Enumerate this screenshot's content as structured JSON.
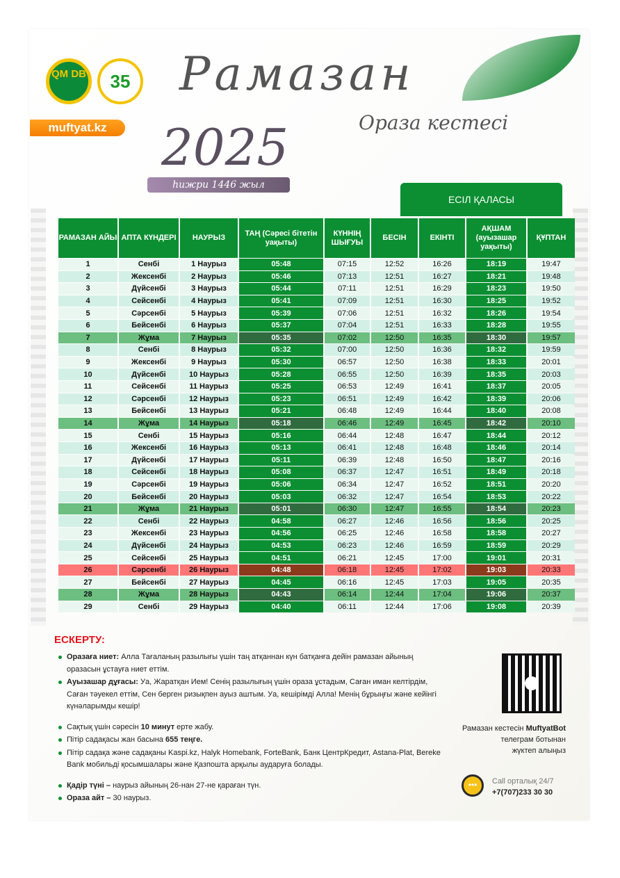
{
  "header": {
    "logo1_text": "QM DB",
    "logo2_text": "35",
    "site": "muftyat.kz",
    "title": "Рамазан",
    "subtitle": "Ораза кестесі",
    "year": "2025",
    "hijri": "һижри 1446 жыл",
    "city": "ЕСІЛ ҚАЛАСЫ"
  },
  "colors": {
    "green": "#0b8f32",
    "friday": "#6cbf80",
    "friday_dark": "#2f6b3e",
    "special": "#ff7676",
    "special_dark": "#8c3a1c",
    "warning": "#e3151b",
    "orange": "#f57f00"
  },
  "table": {
    "headers": [
      "РАМАЗАН АЙЫ",
      "АПТА КҮНДЕРІ",
      "НАУРЫЗ",
      "ТАҢ (Сәресі бітетін уақыты)",
      "КҮННІҢ ШЫҒУЫ",
      "БЕСІН",
      "ЕКІНТІ",
      "АҚШАМ (ауызашар уақыты)",
      "ҚҰПТАН"
    ],
    "rows": [
      [
        "1",
        "Сенбі",
        "1 Наурыз",
        "05:48",
        "07:15",
        "12:52",
        "16:26",
        "18:19",
        "19:47"
      ],
      [
        "2",
        "Жексенбі",
        "2 Наурыз",
        "05:46",
        "07:13",
        "12:51",
        "16:27",
        "18:21",
        "19:48"
      ],
      [
        "3",
        "Дүйсенбі",
        "3 Наурыз",
        "05:44",
        "07:11",
        "12:51",
        "16:29",
        "18:23",
        "19:50"
      ],
      [
        "4",
        "Сейсенбі",
        "4 Наурыз",
        "05:41",
        "07:09",
        "12:51",
        "16:30",
        "18:25",
        "19:52"
      ],
      [
        "5",
        "Сәрсенбі",
        "5 Наурыз",
        "05:39",
        "07:06",
        "12:51",
        "16:32",
        "18:26",
        "19:54"
      ],
      [
        "6",
        "Бейсенбі",
        "6 Наурыз",
        "05:37",
        "07:04",
        "12:51",
        "16:33",
        "18:28",
        "19:55"
      ],
      [
        "7",
        "Жұма",
        "7 Наурыз",
        "05:35",
        "07:02",
        "12:50",
        "16:35",
        "18:30",
        "19:57"
      ],
      [
        "8",
        "Сенбі",
        "8 Наурыз",
        "05:32",
        "07:00",
        "12:50",
        "16:36",
        "18:32",
        "19:59"
      ],
      [
        "9",
        "Жексенбі",
        "9 Наурыз",
        "05:30",
        "06:57",
        "12:50",
        "16:38",
        "18:33",
        "20:01"
      ],
      [
        "10",
        "Дүйсенбі",
        "10 Наурыз",
        "05:28",
        "06:55",
        "12:50",
        "16:39",
        "18:35",
        "20:03"
      ],
      [
        "11",
        "Сейсенбі",
        "11 Наурыз",
        "05:25",
        "06:53",
        "12:49",
        "16:41",
        "18:37",
        "20:05"
      ],
      [
        "12",
        "Сәрсенбі",
        "12 Наурыз",
        "05:23",
        "06:51",
        "12:49",
        "16:42",
        "18:39",
        "20:06"
      ],
      [
        "13",
        "Бейсенбі",
        "13 Наурыз",
        "05:21",
        "06:48",
        "12:49",
        "16:44",
        "18:40",
        "20:08"
      ],
      [
        "14",
        "Жұма",
        "14 Наурыз",
        "05:18",
        "06:46",
        "12:49",
        "16:45",
        "18:42",
        "20:10"
      ],
      [
        "15",
        "Сенбі",
        "15 Наурыз",
        "05:16",
        "06:44",
        "12:48",
        "16:47",
        "18:44",
        "20:12"
      ],
      [
        "16",
        "Жексенбі",
        "16 Наурыз",
        "05:13",
        "06:41",
        "12:48",
        "16:48",
        "18:46",
        "20:14"
      ],
      [
        "17",
        "Дүйсенбі",
        "17 Наурыз",
        "05:11",
        "06:39",
        "12:48",
        "16:50",
        "18:47",
        "20:16"
      ],
      [
        "18",
        "Сейсенбі",
        "18 Наурыз",
        "05:08",
        "06:37",
        "12:47",
        "16:51",
        "18:49",
        "20:18"
      ],
      [
        "19",
        "Сәрсенбі",
        "19 Наурыз",
        "05:06",
        "06:34",
        "12:47",
        "16:52",
        "18:51",
        "20:20"
      ],
      [
        "20",
        "Бейсенбі",
        "20 Наурыз",
        "05:03",
        "06:32",
        "12:47",
        "16:54",
        "18:53",
        "20:22"
      ],
      [
        "21",
        "Жұма",
        "21 Наурыз",
        "05:01",
        "06:30",
        "12:47",
        "16:55",
        "18:54",
        "20:23"
      ],
      [
        "22",
        "Сенбі",
        "22 Наурыз",
        "04:58",
        "06:27",
        "12:46",
        "16:56",
        "18:56",
        "20:25"
      ],
      [
        "23",
        "Жексенбі",
        "23 Наурыз",
        "04:56",
        "06:25",
        "12:46",
        "16:58",
        "18:58",
        "20:27"
      ],
      [
        "24",
        "Дүйсенбі",
        "24 Наурыз",
        "04:53",
        "06:23",
        "12:46",
        "16:59",
        "18:59",
        "20:29"
      ],
      [
        "25",
        "Сейсенбі",
        "25 Наурыз",
        "04:51",
        "06:21",
        "12:45",
        "17:00",
        "19:01",
        "20:31"
      ],
      [
        "26",
        "Сәрсенбі",
        "26 Наурыз",
        "04:48",
        "06:18",
        "12:45",
        "17:02",
        "19:03",
        "20:33"
      ],
      [
        "27",
        "Бейсенбі",
        "27 Наурыз",
        "04:45",
        "06:16",
        "12:45",
        "17:03",
        "19:05",
        "20:35"
      ],
      [
        "28",
        "Жұма",
        "28 Наурыз",
        "04:43",
        "06:14",
        "12:44",
        "17:04",
        "19:06",
        "20:37"
      ],
      [
        "29",
        "Сенбі",
        "29 Наурыз",
        "04:40",
        "06:11",
        "12:44",
        "17:06",
        "19:08",
        "20:39"
      ]
    ],
    "special_row": "26"
  },
  "notes": {
    "title": "ЕСКЕРТУ:",
    "items": [
      {
        "bold": "Оразаға ниет:",
        "text": " Алла Тағаланың разылығы үшін таң атқаннан күн батқанға дейін рамазан айының оразасын ұстауға ниет еттім."
      },
      {
        "bold": "Ауызашар дұғасы:",
        "text": " Уа, Жаратқан Ием! Сенің разылығың үшін ораза ұстадым, Саған иман келтірдім, Саған тәуекел еттім, Сен берген ризықпен ауыз аштым. Уа, кешірімді Алла! Менің бұрыңғы және кейінгі күнәларымды кешір!"
      },
      {
        "pre": "Сақтық үшін сәресін ",
        "bold": "10 минут",
        "text": " ерте жабу.",
        "gap": true
      },
      {
        "pre": "Пітір садақасы жан басына ",
        "bold": "655 теңге.",
        "text": ""
      },
      {
        "pre": "Пітір садақа және садақаны Kaspi.kz, Halyk Homebank, ForteBank, Банк ЦентрКредит, Astana-Plat, Bereke Bank мобильді қосымшалары және Қазпошта арқылы аударуға болады.",
        "bold": "",
        "text": ""
      },
      {
        "bold": "Қадір түні –",
        "text": " наурыз айының 26-нан 27-не қараған түн.",
        "gap": true
      },
      {
        "bold": "Ораза айт –",
        "text": " 30 наурыз."
      }
    ]
  },
  "bot": {
    "pre": "Рамазан кестесін ",
    "bold": "MuftyatBot",
    "line2": "телеграм ботынан",
    "line3": "жүктеп алыңыз"
  },
  "call": {
    "label": "Call орталық 24/7",
    "phone": "+7(707)233 30 30",
    "icon": "headset-chat-icon"
  }
}
